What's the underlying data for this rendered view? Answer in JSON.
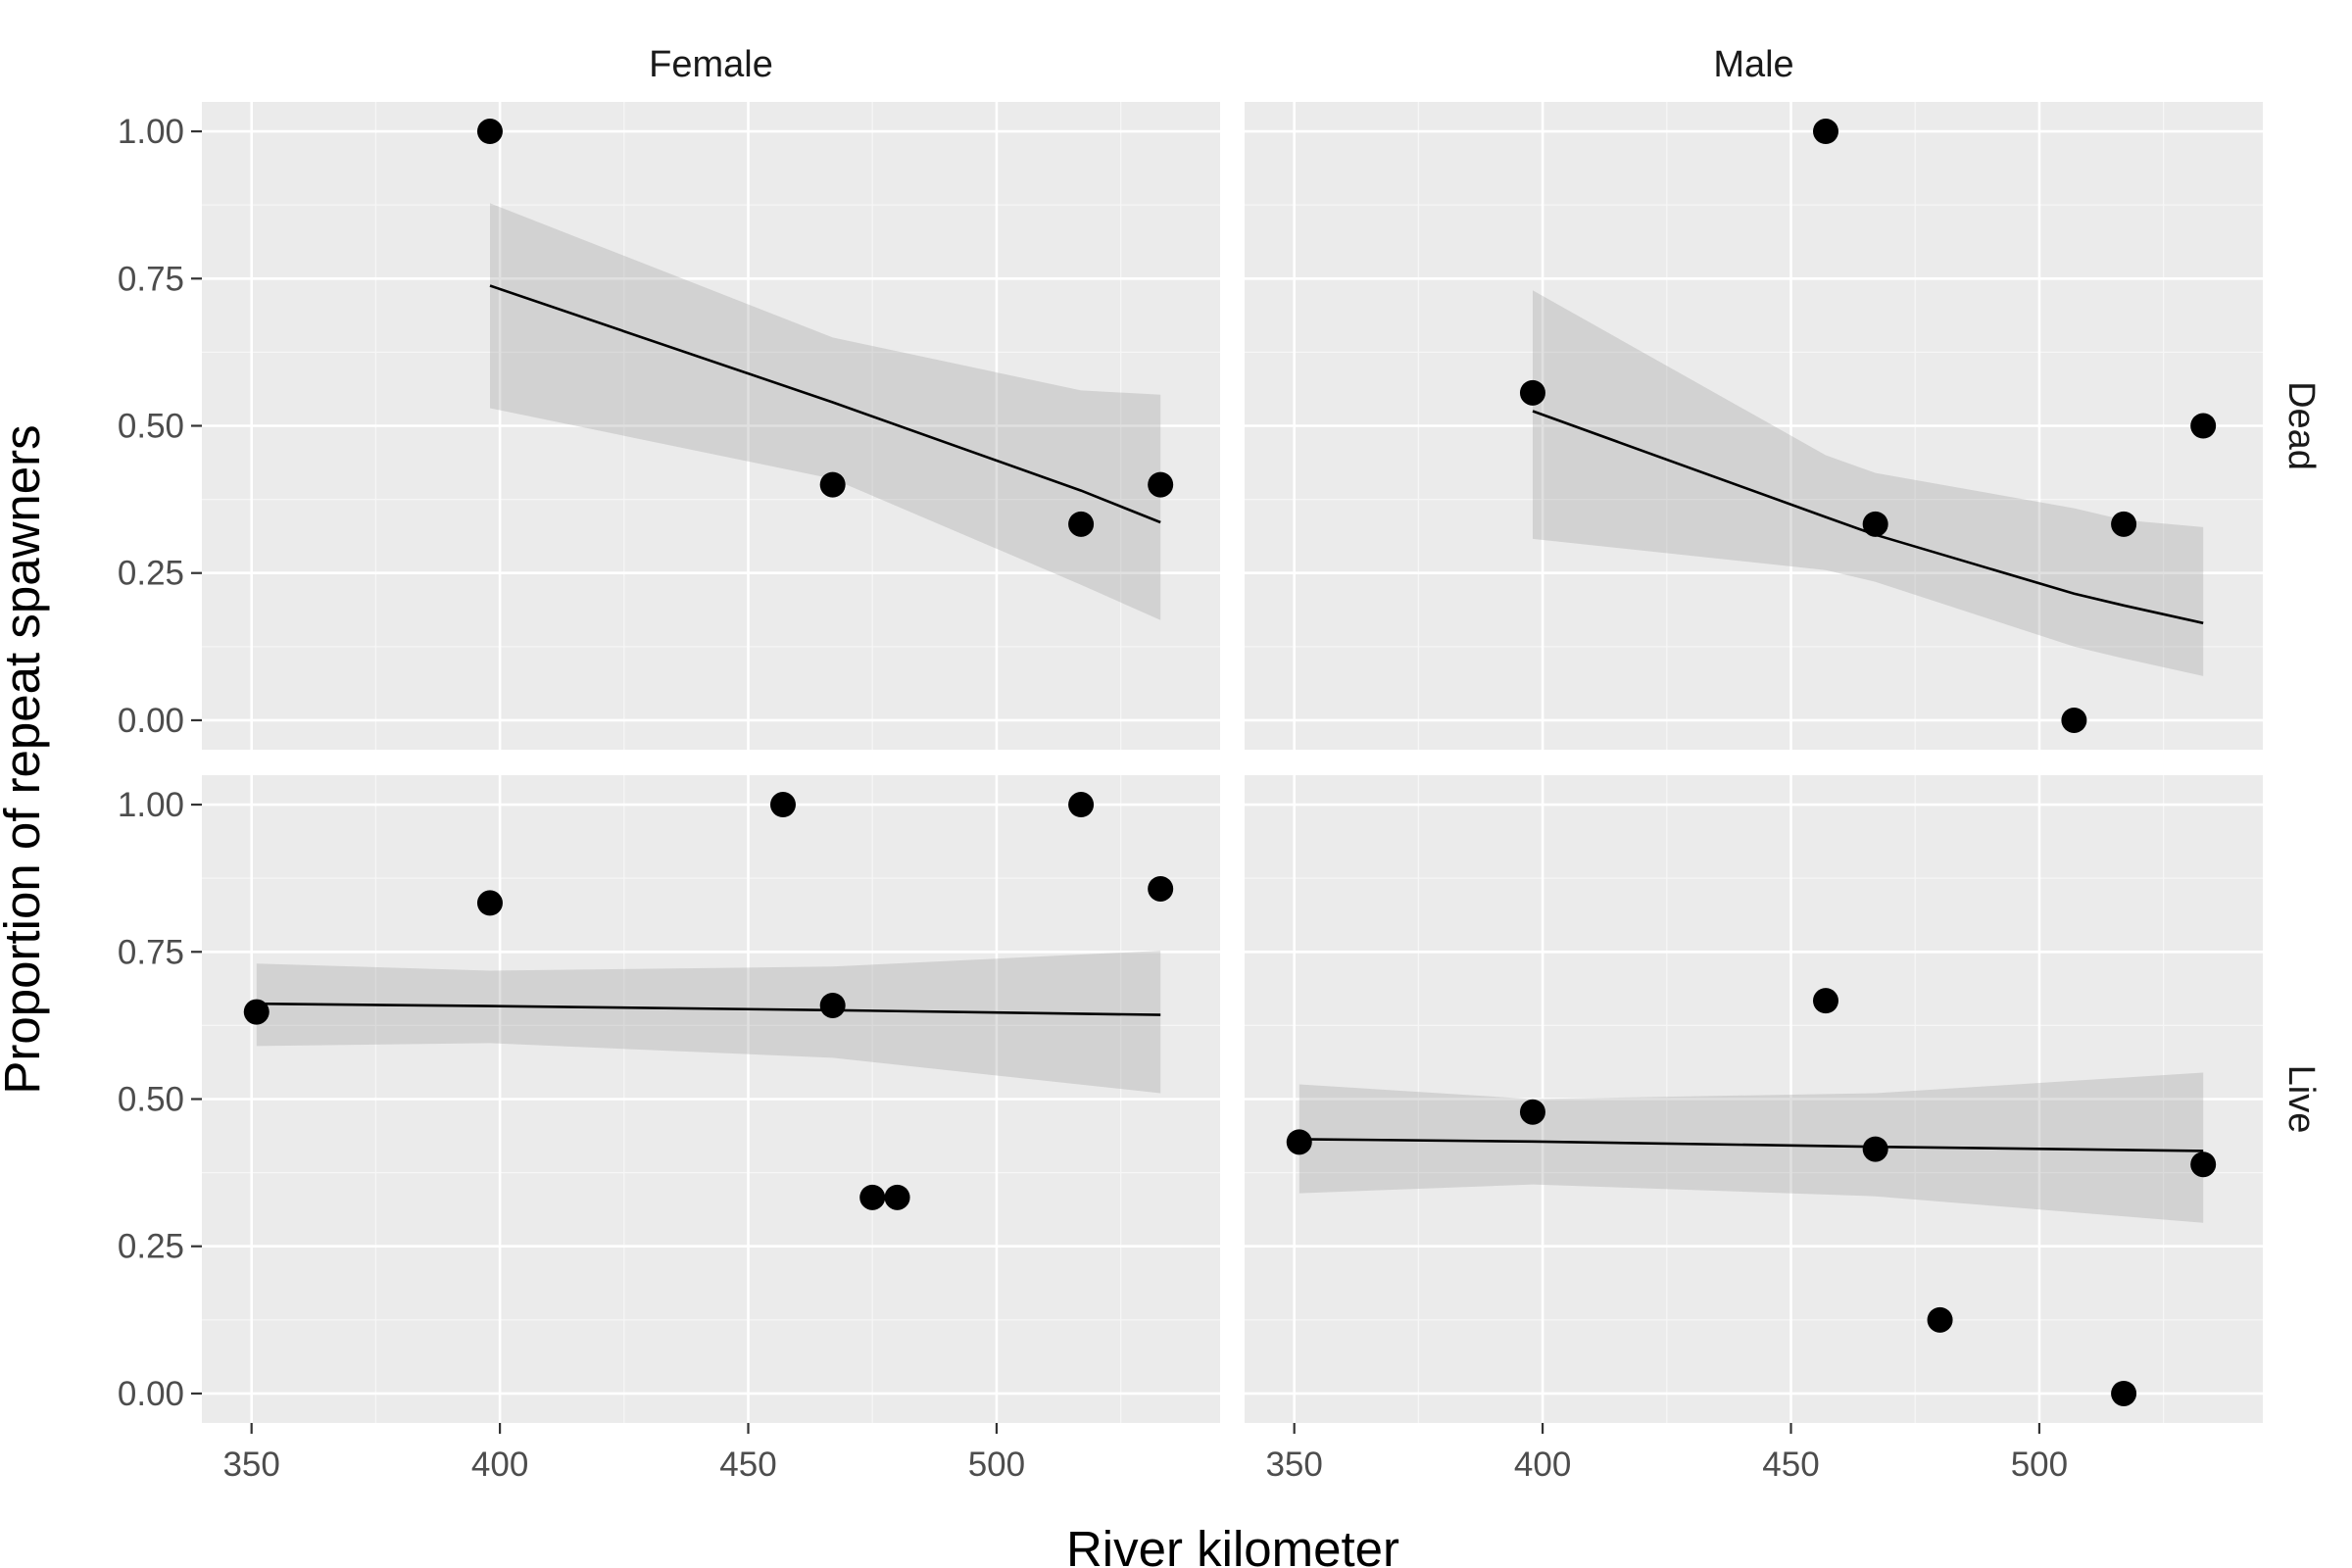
{
  "chart_data": {
    "type": "scatter",
    "title": "",
    "xlabel": "River kilometer",
    "ylabel": "Proportion of repeat spawners",
    "xlim": [
      340,
      545
    ],
    "ylim": [
      -0.05,
      1.05
    ],
    "x_ticks": [
      350,
      400,
      450,
      500
    ],
    "x_tick_labels": [
      "350",
      "400",
      "450",
      "500"
    ],
    "y_ticks": [
      0,
      0.25,
      0.5,
      0.75,
      1
    ],
    "y_tick_labels": [
      "0.00",
      "0.25",
      "0.50",
      "0.75",
      "1.00"
    ],
    "grid": true,
    "legend": "none",
    "columns": [
      "Female",
      "Male"
    ],
    "rows": [
      "Dead",
      "Live"
    ],
    "panels": [
      {
        "col": "Female",
        "row": "Dead",
        "points": [
          {
            "x": 398,
            "y": 1.0
          },
          {
            "x": 467,
            "y": 0.4
          },
          {
            "x": 517,
            "y": 0.333
          },
          {
            "x": 533,
            "y": 0.4
          }
        ],
        "fit": [
          {
            "x": 398,
            "y": 0.738,
            "lo": 0.53,
            "hi": 0.878
          },
          {
            "x": 467,
            "y": 0.54,
            "lo": 0.41,
            "hi": 0.65
          },
          {
            "x": 517,
            "y": 0.39,
            "lo": 0.23,
            "hi": 0.56
          },
          {
            "x": 533,
            "y": 0.336,
            "lo": 0.17,
            "hi": 0.553
          }
        ]
      },
      {
        "col": "Male",
        "row": "Dead",
        "points": [
          {
            "x": 398,
            "y": 0.556
          },
          {
            "x": 457,
            "y": 1.0
          },
          {
            "x": 467,
            "y": 0.333
          },
          {
            "x": 507,
            "y": 0.0
          },
          {
            "x": 517,
            "y": 0.333
          },
          {
            "x": 533,
            "y": 0.5
          }
        ],
        "fit": [
          {
            "x": 398,
            "y": 0.525,
            "lo": 0.308,
            "hi": 0.73
          },
          {
            "x": 457,
            "y": 0.345,
            "lo": 0.255,
            "hi": 0.45
          },
          {
            "x": 467,
            "y": 0.315,
            "lo": 0.235,
            "hi": 0.42
          },
          {
            "x": 507,
            "y": 0.215,
            "lo": 0.125,
            "hi": 0.36
          },
          {
            "x": 517,
            "y": 0.195,
            "lo": 0.105,
            "hi": 0.34
          },
          {
            "x": 533,
            "y": 0.165,
            "lo": 0.075,
            "hi": 0.328
          }
        ]
      },
      {
        "col": "Female",
        "row": "Live",
        "points": [
          {
            "x": 351,
            "y": 0.648
          },
          {
            "x": 398,
            "y": 0.833
          },
          {
            "x": 457,
            "y": 1.0
          },
          {
            "x": 467,
            "y": 0.659
          },
          {
            "x": 475,
            "y": 0.333
          },
          {
            "x": 480,
            "y": 0.333
          },
          {
            "x": 517,
            "y": 1.0
          },
          {
            "x": 533,
            "y": 0.857
          }
        ],
        "fit": [
          {
            "x": 351,
            "y": 0.662,
            "lo": 0.59,
            "hi": 0.73
          },
          {
            "x": 398,
            "y": 0.658,
            "lo": 0.595,
            "hi": 0.718
          },
          {
            "x": 467,
            "y": 0.651,
            "lo": 0.57,
            "hi": 0.725
          },
          {
            "x": 533,
            "y": 0.643,
            "lo": 0.51,
            "hi": 0.752
          }
        ]
      },
      {
        "col": "Male",
        "row": "Live",
        "points": [
          {
            "x": 351,
            "y": 0.427
          },
          {
            "x": 398,
            "y": 0.478
          },
          {
            "x": 457,
            "y": 0.667
          },
          {
            "x": 467,
            "y": 0.415
          },
          {
            "x": 480,
            "y": 0.125
          },
          {
            "x": 517,
            "y": 0.0
          },
          {
            "x": 533,
            "y": 0.389
          }
        ],
        "fit": [
          {
            "x": 351,
            "y": 0.432,
            "lo": 0.34,
            "hi": 0.525
          },
          {
            "x": 398,
            "y": 0.428,
            "lo": 0.355,
            "hi": 0.5
          },
          {
            "x": 467,
            "y": 0.419,
            "lo": 0.335,
            "hi": 0.51
          },
          {
            "x": 533,
            "y": 0.412,
            "lo": 0.29,
            "hi": 0.545
          }
        ]
      }
    ]
  }
}
